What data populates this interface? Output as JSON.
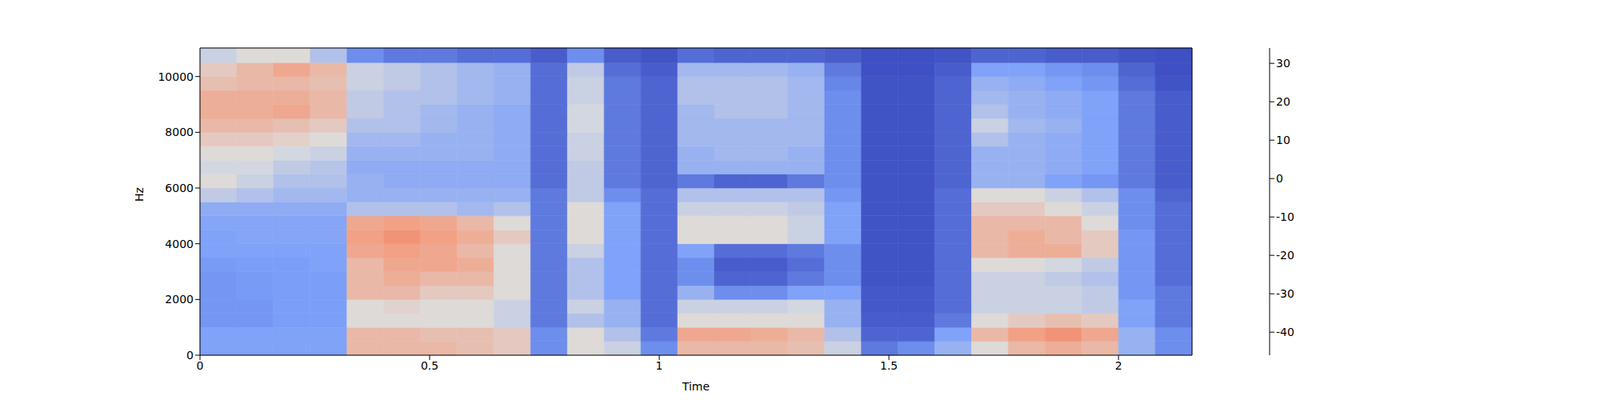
{
  "chart_data": {
    "type": "heatmap",
    "xlabel": "Time",
    "ylabel": "Hz",
    "xlim": [
      0,
      2.16
    ],
    "xticks": [
      0,
      0.5,
      1,
      1.5,
      2
    ],
    "ylim": [
      0,
      11025
    ],
    "yticks": [
      0,
      2000,
      4000,
      6000,
      8000,
      10000
    ],
    "x_bins": [
      0,
      0.08,
      0.16,
      0.24,
      0.32,
      0.4,
      0.48,
      0.56,
      0.64,
      0.72,
      0.8,
      0.88,
      0.96,
      1.04,
      1.12,
      1.2,
      1.28,
      1.36,
      1.44,
      1.52,
      1.6,
      1.68,
      1.76,
      1.84,
      1.92,
      2.0,
      2.08,
      2.16
    ],
    "y_bins": [
      0,
      500,
      1000,
      1500,
      2000,
      2500,
      3000,
      3500,
      4000,
      4500,
      5000,
      5500,
      6000,
      6500,
      7000,
      7500,
      8000,
      8500,
      9000,
      9500,
      10000,
      10500,
      11025
    ],
    "cells": [
      [
        -25,
        -25,
        -25,
        -25,
        5,
        5,
        5,
        3,
        0,
        -30,
        -5,
        -10,
        -30,
        5,
        5,
        5,
        3,
        -10,
        -35,
        -30,
        -20,
        -5,
        5,
        8,
        5,
        -20,
        -30
      ],
      [
        -25,
        -25,
        -25,
        -25,
        5,
        5,
        3,
        3,
        0,
        -30,
        -5,
        -15,
        -35,
        10,
        10,
        8,
        5,
        -15,
        -40,
        -40,
        -25,
        5,
        12,
        15,
        10,
        -20,
        -30
      ],
      [
        -28,
        -28,
        -26,
        -26,
        -5,
        -5,
        -5,
        -5,
        -10,
        -35,
        -15,
        -20,
        -38,
        -5,
        -5,
        -5,
        -5,
        -20,
        -42,
        -42,
        -35,
        -5,
        0,
        3,
        0,
        -25,
        -35
      ],
      [
        -28,
        -28,
        -26,
        -26,
        -5,
        -3,
        -5,
        -5,
        -10,
        -35,
        -10,
        -20,
        -38,
        -10,
        -10,
        -10,
        -8,
        -20,
        -43,
        -43,
        -38,
        -10,
        -10,
        -10,
        -12,
        -25,
        -35
      ],
      [
        -28,
        -27,
        -26,
        -26,
        5,
        5,
        0,
        0,
        -5,
        -35,
        -15,
        -25,
        -38,
        -20,
        -30,
        -30,
        -25,
        -25,
        -43,
        -43,
        -38,
        -10,
        -10,
        -10,
        -12,
        -28,
        -35
      ],
      [
        -28,
        -27,
        -26,
        -26,
        5,
        8,
        5,
        5,
        -5,
        -35,
        -15,
        -25,
        -38,
        -30,
        -40,
        -40,
        -35,
        -30,
        -44,
        -44,
        -38,
        -10,
        -10,
        -12,
        -15,
        -28,
        -38
      ],
      [
        -27,
        -26,
        -26,
        -25,
        5,
        10,
        10,
        8,
        -5,
        -35,
        -15,
        -25,
        -38,
        -30,
        -42,
        -42,
        -38,
        -30,
        -44,
        -44,
        -38,
        -5,
        -5,
        -8,
        -12,
        -28,
        -38
      ],
      [
        -25,
        -25,
        -25,
        -25,
        10,
        12,
        10,
        5,
        -5,
        -35,
        -10,
        -25,
        -38,
        -25,
        -38,
        -38,
        -35,
        -30,
        -44,
        -44,
        -38,
        5,
        8,
        8,
        0,
        -28,
        -38
      ],
      [
        -25,
        -24,
        -24,
        -24,
        12,
        15,
        12,
        8,
        0,
        -35,
        -5,
        -25,
        -38,
        -5,
        -5,
        -5,
        -10,
        -25,
        -44,
        -44,
        -38,
        5,
        8,
        5,
        0,
        -28,
        -38
      ],
      [
        -24,
        -24,
        -24,
        -24,
        10,
        12,
        10,
        5,
        -5,
        -35,
        -5,
        -25,
        -38,
        -5,
        -5,
        -5,
        -10,
        -25,
        -44,
        -44,
        -38,
        5,
        5,
        5,
        -5,
        -30,
        -38
      ],
      [
        -22,
        -22,
        -22,
        -22,
        -15,
        -15,
        -15,
        -18,
        -15,
        -35,
        -5,
        -25,
        -38,
        -10,
        -10,
        -10,
        -12,
        -25,
        -44,
        -44,
        -38,
        0,
        0,
        -5,
        -10,
        -30,
        -38
      ],
      [
        -12,
        -15,
        -18,
        -18,
        -20,
        -20,
        -20,
        -20,
        -20,
        -35,
        -12,
        -30,
        -38,
        -15,
        -15,
        -15,
        -15,
        -28,
        -44,
        -44,
        -38,
        -5,
        -5,
        -10,
        -15,
        -30,
        -40
      ],
      [
        -5,
        -10,
        -15,
        -15,
        -20,
        -22,
        -22,
        -22,
        -22,
        -38,
        -12,
        -35,
        -40,
        -35,
        -40,
        -40,
        -35,
        -30,
        -44,
        -44,
        -40,
        -20,
        -20,
        -25,
        -28,
        -35,
        -42
      ],
      [
        -8,
        -8,
        -12,
        -14,
        -22,
        -22,
        -22,
        -22,
        -22,
        -38,
        -12,
        -35,
        -40,
        -20,
        -20,
        -20,
        -20,
        -30,
        -44,
        -44,
        -40,
        -20,
        -20,
        -22,
        -25,
        -35,
        -42
      ],
      [
        -5,
        -5,
        -8,
        -10,
        -20,
        -20,
        -20,
        -20,
        -22,
        -38,
        -10,
        -35,
        -40,
        -20,
        -18,
        -18,
        -20,
        -30,
        -44,
        -44,
        -40,
        -20,
        -20,
        -22,
        -25,
        -35,
        -42
      ],
      [
        0,
        0,
        -2,
        -5,
        -18,
        -18,
        -20,
        -20,
        -22,
        -38,
        -10,
        -35,
        -40,
        -18,
        -18,
        -18,
        -18,
        -30,
        -44,
        -44,
        -40,
        -15,
        -20,
        -22,
        -25,
        -35,
        -42
      ],
      [
        5,
        5,
        3,
        0,
        -15,
        -15,
        -18,
        -20,
        -22,
        -38,
        -8,
        -35,
        -40,
        -18,
        -18,
        -18,
        -18,
        -30,
        -44,
        -44,
        -40,
        -10,
        -18,
        -20,
        -25,
        -35,
        -42
      ],
      [
        8,
        8,
        10,
        5,
        -12,
        -15,
        -18,
        -20,
        -22,
        -38,
        -8,
        -35,
        -40,
        -18,
        -15,
        -15,
        -18,
        -30,
        -44,
        -44,
        -40,
        -15,
        -20,
        -22,
        -25,
        -35,
        -42
      ],
      [
        8,
        8,
        8,
        5,
        -12,
        -15,
        -15,
        -18,
        -20,
        -38,
        -10,
        -35,
        -40,
        -15,
        -15,
        -15,
        -18,
        -30,
        -44,
        -44,
        -40,
        -18,
        -20,
        -22,
        -25,
        -35,
        -42
      ],
      [
        3,
        5,
        5,
        3,
        -10,
        -12,
        -15,
        -18,
        -20,
        -38,
        -10,
        -35,
        -40,
        -15,
        -15,
        -15,
        -18,
        -32,
        -44,
        -44,
        -40,
        -20,
        -22,
        -25,
        -28,
        -38,
        -44
      ],
      [
        0,
        5,
        10,
        5,
        -10,
        -12,
        -15,
        -18,
        -20,
        -38,
        -12,
        -38,
        -42,
        -18,
        -18,
        -18,
        -20,
        -35,
        -45,
        -45,
        -42,
        -25,
        -25,
        -28,
        -30,
        -40,
        -45
      ],
      [
        -10,
        -5,
        -5,
        -15,
        -30,
        -35,
        -35,
        -38,
        -38,
        -42,
        -30,
        -42,
        -44,
        -38,
        -40,
        -40,
        -40,
        -42,
        -45,
        -45,
        -44,
        -40,
        -40,
        -42,
        -42,
        -44,
        -45
      ]
    ],
    "colorbar": {
      "lim": [
        -46,
        34
      ],
      "ticks": [
        -40,
        -30,
        -20,
        -10,
        0,
        10,
        20,
        30
      ]
    }
  }
}
